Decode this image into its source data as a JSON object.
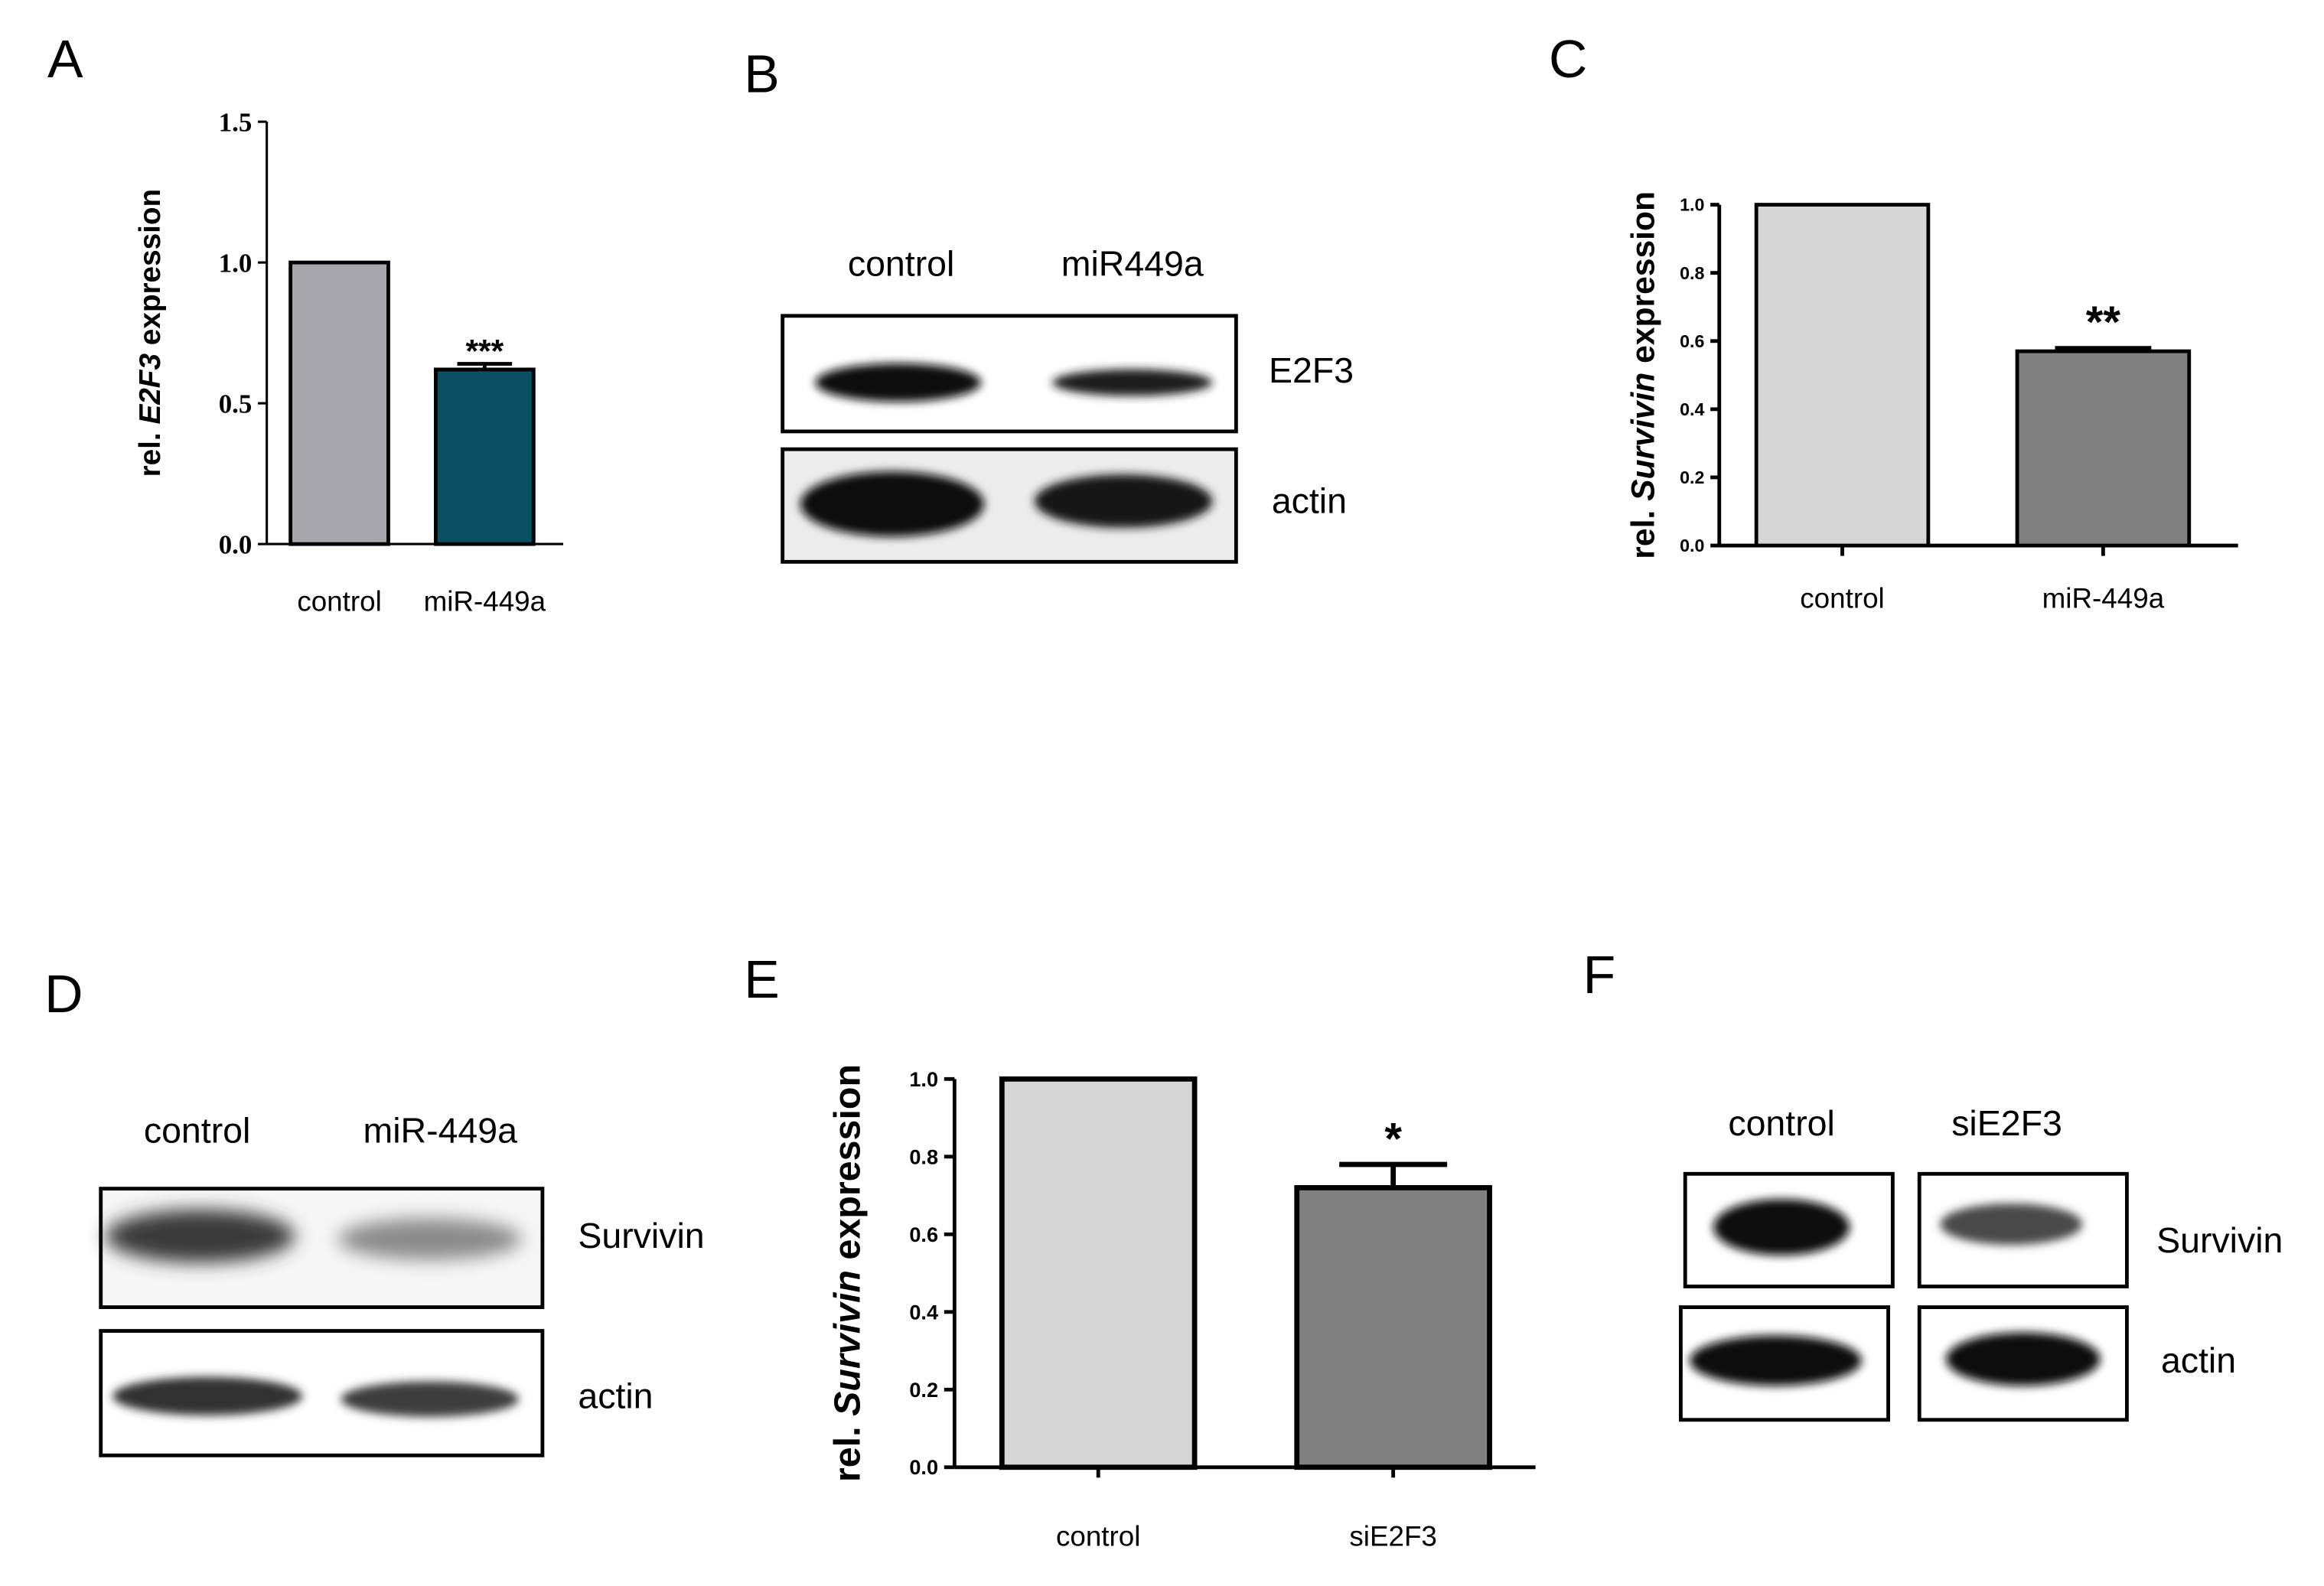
{
  "chart_data": [
    {
      "panel": "A",
      "type": "bar",
      "ylabel": {
        "pre": "rel. ",
        "gene": "E2F3",
        "post": " expression"
      },
      "categories": [
        "control",
        "miR-449a"
      ],
      "values": [
        1.0,
        0.62
      ],
      "errors": [
        0,
        0.02
      ],
      "significance": [
        "",
        "***"
      ],
      "colors": [
        "#a7a6ad",
        "#0b4f63"
      ],
      "ylim": [
        0,
        1.5
      ],
      "yticks": [
        "0.0",
        "0.5",
        "1.0",
        "1.5"
      ]
    },
    {
      "panel": "C",
      "type": "bar",
      "ylabel": {
        "pre": "rel. ",
        "gene": "Survivin",
        "post": " expression"
      },
      "categories": [
        "control",
        "miR-449a"
      ],
      "values": [
        1.0,
        0.57
      ],
      "errors": [
        0,
        0.01
      ],
      "significance": [
        "",
        "**"
      ],
      "colors": [
        "#d6d6d6",
        "#808080"
      ],
      "ylim": [
        0,
        1.0
      ],
      "yticks": [
        "0.0",
        "0.2",
        "0.4",
        "0.6",
        "0.8",
        "1.0"
      ]
    },
    {
      "panel": "E",
      "type": "bar",
      "ylabel": {
        "pre": "rel. ",
        "gene": "Survivin",
        "post": " expression"
      },
      "categories": [
        "control",
        "siE2F3"
      ],
      "values": [
        1.0,
        0.72
      ],
      "errors": [
        0,
        0.06
      ],
      "significance": [
        "",
        "*"
      ],
      "colors": [
        "#d6d6d6",
        "#808080"
      ],
      "ylim": [
        0,
        1.0
      ],
      "yticks": [
        "0.0",
        "0.2",
        "0.4",
        "0.6",
        "0.8",
        "1.0"
      ]
    }
  ],
  "blots": [
    {
      "panel": "B",
      "lanes": [
        "control",
        "miR449a"
      ],
      "rows": [
        "E2F3",
        "actin"
      ]
    },
    {
      "panel": "D",
      "lanes": [
        "control",
        "miR-449a"
      ],
      "rows": [
        "Survivin",
        "actin"
      ]
    },
    {
      "panel": "F",
      "lanes": [
        "control",
        "siE2F3"
      ],
      "rows": [
        "Survivin",
        "actin"
      ]
    }
  ]
}
